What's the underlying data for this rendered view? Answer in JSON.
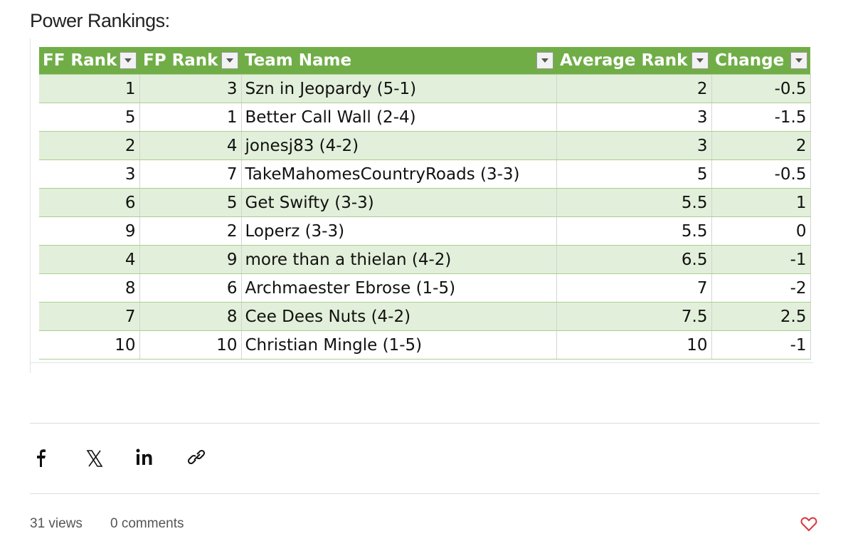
{
  "header": {
    "title": "Power Rankings:"
  },
  "table": {
    "columns": [
      "FF Rank",
      "FP Rank",
      "Team Name",
      "Average Rank",
      "Change"
    ],
    "rows": [
      [
        "1",
        "3",
        "Szn in Jeopardy (5-1)",
        "2",
        "-0.5"
      ],
      [
        "5",
        "1",
        "Better Call Wall (2-4)",
        "3",
        "-1.5"
      ],
      [
        "2",
        "4",
        "jonesj83 (4-2)",
        "3",
        "2"
      ],
      [
        "3",
        "7",
        "TakeMahomesCountryRoads (3-3)",
        "5",
        "-0.5"
      ],
      [
        "6",
        "5",
        "Get Swifty (3-3)",
        "5.5",
        "1"
      ],
      [
        "9",
        "2",
        "Loperz (3-3)",
        "5.5",
        "0"
      ],
      [
        "4",
        "9",
        "more than a thielan (4-2)",
        "6.5",
        "-1"
      ],
      [
        "8",
        "6",
        "Archmaester Ebrose (1-5)",
        "7",
        "-2"
      ],
      [
        "7",
        "8",
        "Cee Dees Nuts (4-2)",
        "7.5",
        "2.5"
      ],
      [
        "10",
        "10",
        "Christian Mingle (1-5)",
        "10",
        "-1"
      ]
    ]
  },
  "footer": {
    "views": "31 views",
    "comments": "0 comments"
  }
}
